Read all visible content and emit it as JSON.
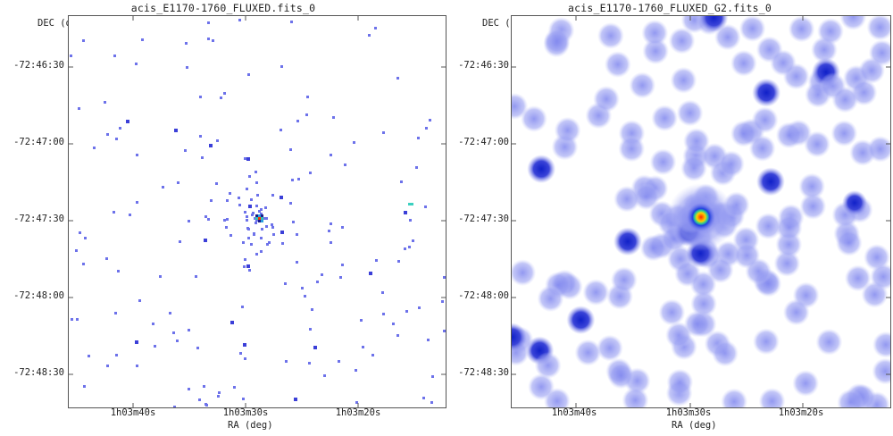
{
  "panels": [
    {
      "id": "left",
      "title": "acis_E1170-1760_FLUXED.fits_0",
      "dec_label": "DEC (deg)",
      "ra_label": "RA (deg)",
      "yticks": [
        "-72:46:30",
        "-72:47:00",
        "-72:47:30",
        "-72:48:00",
        "-72:48:30"
      ],
      "xticks": [
        "1h03m40s",
        "1h03m30s",
        "1h03m20s"
      ],
      "style": "sparse-pixels",
      "source_color": "#3bd0c0"
    },
    {
      "id": "right",
      "title": "acis_E1170-1760_FLUXED_G2.fits_0",
      "dec_label": "DEC (deg)",
      "ra_label": "RA (deg)",
      "yticks": [
        "-72:46:30",
        "-72:47:00",
        "-72:47:30",
        "-72:48:00",
        "-72:48:30"
      ],
      "xticks": [
        "1h03m40s",
        "1h03m30s",
        "1h03m20s"
      ],
      "style": "smoothed-blobs",
      "source_color": "#ff2a00"
    }
  ],
  "colors": {
    "faint": "#6d72ea",
    "medium": "#3b3fd8",
    "bright_core": "#ff2a00",
    "halo": "#b8bdf5",
    "frame": "#555555"
  }
}
